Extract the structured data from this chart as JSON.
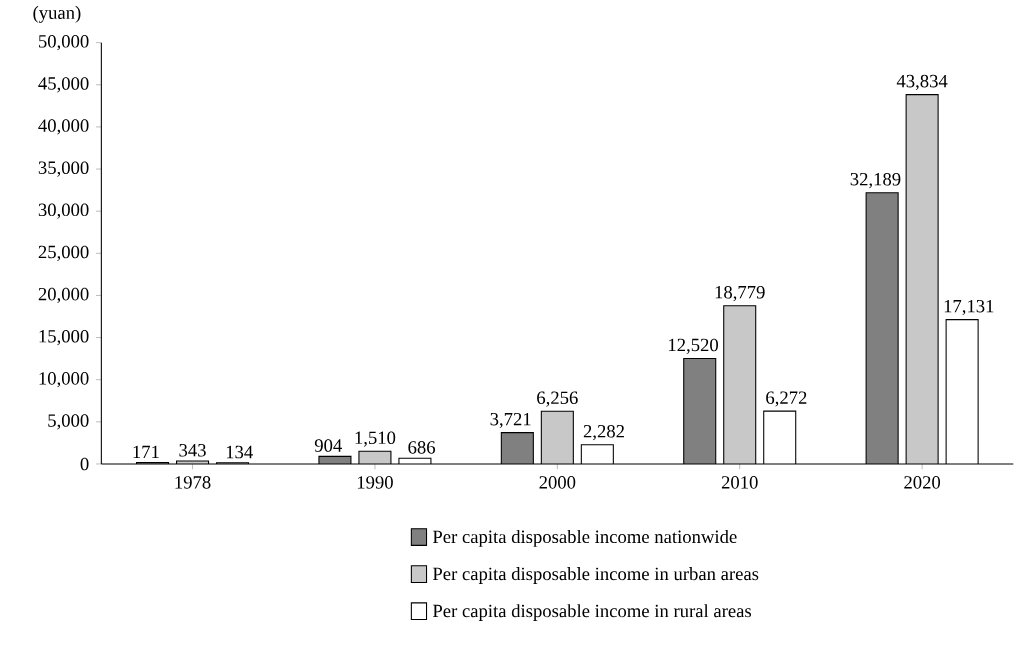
{
  "chart_data": {
    "type": "bar",
    "ylabel": "(yuan)",
    "categories": [
      "1978",
      "1990",
      "2000",
      "2010",
      "2020"
    ],
    "series": [
      {
        "name": "Per capita disposable income nationwide",
        "color": "#808080",
        "values": [
          171,
          904,
          3721,
          12520,
          32189
        ],
        "value_labels": [
          "171",
          "904",
          "3,721",
          "12,520",
          "32,189"
        ]
      },
      {
        "name": "Per capita disposable income in urban areas",
        "color": "#c8c8c8",
        "values": [
          343,
          1510,
          6256,
          18779,
          43834
        ],
        "value_labels": [
          "343",
          "1,510",
          "6,256",
          "18,779",
          "43,834"
        ]
      },
      {
        "name": "Per capita disposable income in rural areas",
        "color": "#ffffff",
        "values": [
          134,
          686,
          2282,
          6272,
          17131
        ],
        "value_labels": [
          "134",
          "686",
          "2,282",
          "6,272",
          "17,131"
        ]
      }
    ],
    "ylim": [
      0,
      50000
    ],
    "yticks": [
      0,
      {
        "value": 5000,
        "label": "5,000"
      },
      {
        "value": 10000,
        "label": "10,000"
      },
      {
        "value": 15000,
        "label": "15,000"
      },
      {
        "value": 20000,
        "label": "20,000"
      },
      {
        "value": 25000,
        "label": "25,000"
      },
      {
        "value": 30000,
        "label": "30,000"
      },
      {
        "value": 35000,
        "label": "35,000"
      },
      {
        "value": 40000,
        "label": "40,000"
      },
      {
        "value": 45000,
        "label": "45,000"
      },
      {
        "value": 50000,
        "label": "50,000"
      }
    ],
    "grid": false,
    "legend": "bottom"
  }
}
